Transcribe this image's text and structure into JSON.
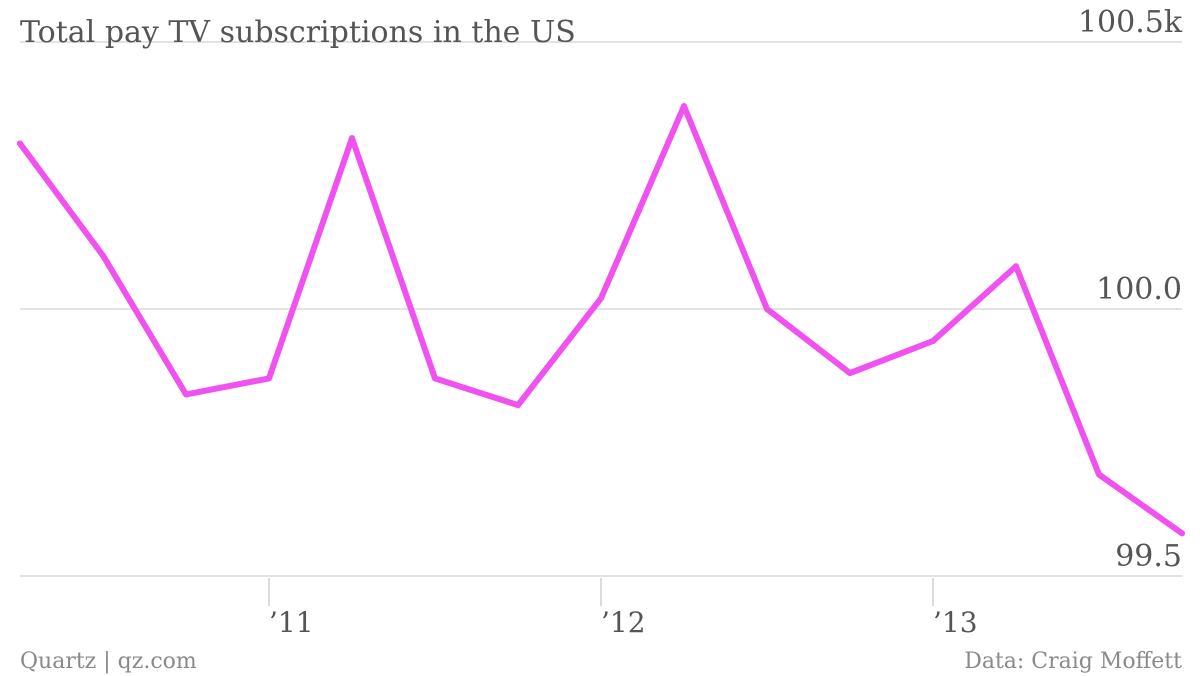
{
  "chart_data": {
    "type": "line",
    "title": "Total pay TV subscriptions in the US",
    "xlabel": "",
    "ylabel": "",
    "x": [
      "2010-Q2",
      "2010-Q3",
      "2010-Q4",
      "2011-Q1",
      "2011-Q2",
      "2011-Q3",
      "2011-Q4",
      "2012-Q1",
      "2012-Q2",
      "2012-Q3",
      "2012-Q4",
      "2013-Q1",
      "2013-Q2",
      "2013-Q3",
      "2013-Q4"
    ],
    "series": [
      {
        "values": [
          100.31,
          100.1,
          99.84,
          99.87,
          100.32,
          99.87,
          99.82,
          100.02,
          100.38,
          100.0,
          99.88,
          99.94,
          100.08,
          99.69,
          99.58
        ]
      }
    ],
    "ylim": [
      99.5,
      100.5
    ],
    "y_ticks": [
      {
        "value": 100.5,
        "label": "100.5k"
      },
      {
        "value": 100.0,
        "label": "100.0"
      },
      {
        "value": 99.5,
        "label": "99.5"
      }
    ],
    "x_ticks": [
      {
        "at": "2011-Q1",
        "label": "’11"
      },
      {
        "at": "2012-Q1",
        "label": "’12"
      },
      {
        "at": "2013-Q1",
        "label": "’13"
      }
    ],
    "grid": true,
    "line_color": "#f052f0"
  },
  "footer": {
    "source_left": "Quartz | qz.com",
    "source_right": "Data: Craig Moffett"
  }
}
